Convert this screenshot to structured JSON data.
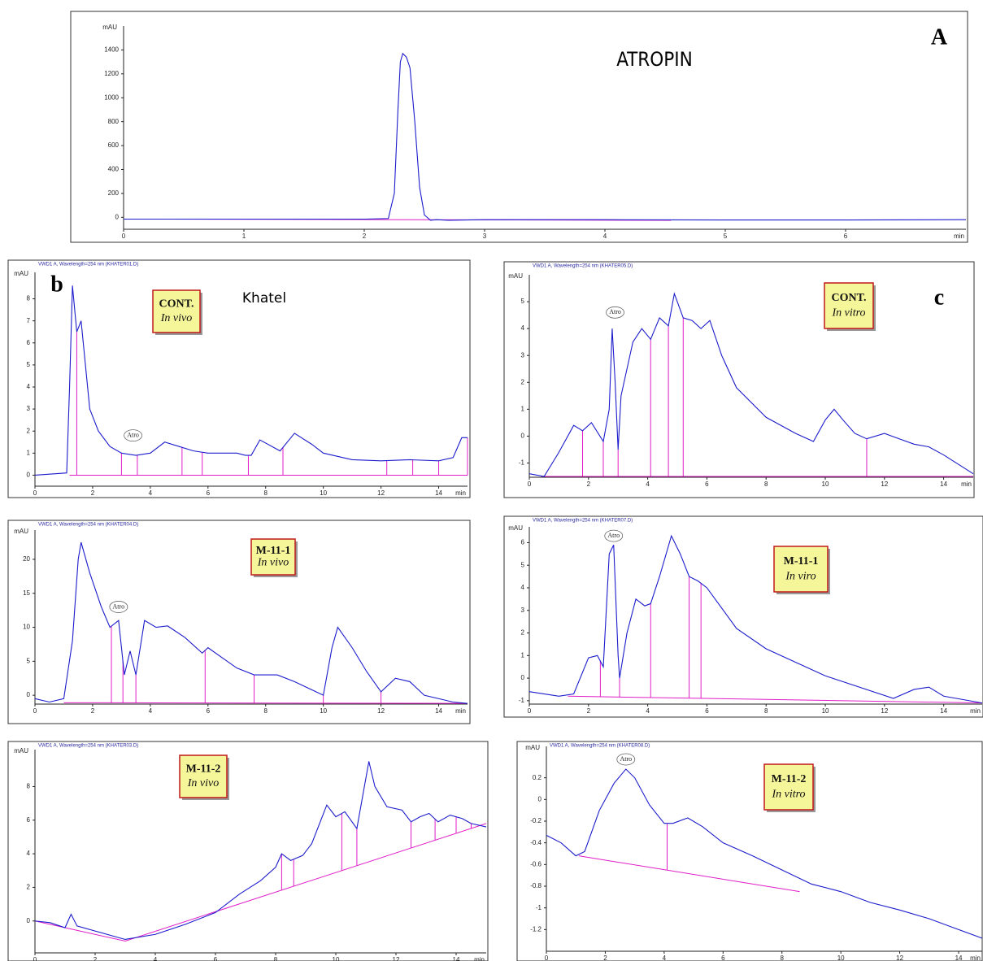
{
  "chart_data": [
    {
      "type": "line",
      "panel_label": "A",
      "title": "ATROPIN",
      "ylabel": "mAU",
      "xlabel": "min",
      "color": "#1c1ccc",
      "baseline_color": "#e01cc8",
      "xlim": [
        0,
        7
      ],
      "ylim": [
        -100,
        1600
      ],
      "xticks": [
        0,
        1,
        2,
        3,
        4,
        5,
        6
      ],
      "yticks": [
        0,
        200,
        400,
        600,
        800,
        1000,
        1200,
        1400
      ],
      "x": [
        0,
        0.5,
        1,
        1.5,
        2,
        2.2,
        2.25,
        2.28,
        2.3,
        2.32,
        2.35,
        2.38,
        2.42,
        2.46,
        2.5,
        2.55,
        2.6,
        2.7,
        3,
        4,
        5,
        6,
        7
      ],
      "values": [
        -15,
        -15,
        -15,
        -15,
        -15,
        -10,
        200,
        900,
        1300,
        1370,
        1340,
        1250,
        800,
        250,
        20,
        -25,
        -20,
        -25,
        -20,
        -20,
        -22,
        -22,
        -20
      ],
      "baseline": {
        "x": [
          0.3,
          4.55
        ],
        "values": [
          -15,
          -25
        ]
      }
    },
    {
      "type": "line",
      "panel_label": "b",
      "header": "VWD1 A, Wavelength=254 nm (KHATER01.D)",
      "note": "Khatel",
      "label_lines": [
        "CONT.",
        "In vivo"
      ],
      "ylabel": "mAU",
      "xlabel": "min",
      "color": "#1c1ccc",
      "baseline_color": "#e01cc8",
      "xlim": [
        0,
        15
      ],
      "ylim": [
        -0.5,
        9.2
      ],
      "xticks": [
        0,
        2,
        4,
        6,
        8,
        10,
        12,
        14
      ],
      "yticks": [
        0,
        1,
        2,
        3,
        4,
        5,
        6,
        7,
        8
      ],
      "x": [
        0,
        1.1,
        1.2,
        1.3,
        1.45,
        1.6,
        1.9,
        2.2,
        2.6,
        3,
        3.5,
        4,
        4.5,
        5,
        5.5,
        6,
        7,
        7.3,
        7.5,
        7.8,
        8.5,
        9,
        9.6,
        10,
        11,
        12,
        13,
        14,
        14.5,
        14.8,
        15
      ],
      "values": [
        0,
        0.1,
        4,
        8.6,
        6.5,
        7,
        3,
        2,
        1.3,
        1,
        0.9,
        1,
        1.5,
        1.3,
        1.1,
        1,
        1,
        0.9,
        0.9,
        1.6,
        1.1,
        1.9,
        1.4,
        1,
        0.7,
        0.65,
        0.7,
        0.65,
        0.8,
        1.7,
        1.7
      ],
      "baseline": {
        "x": [
          1.2,
          15
        ],
        "values": [
          0,
          0
        ]
      },
      "drop_lines": [
        1.45,
        3.0,
        3.55,
        5.1,
        5.8,
        7.4,
        8.6,
        12.2,
        13.1,
        14,
        15
      ],
      "annotations": [
        {
          "text": "Atro",
          "x": 3.4,
          "y": 1.8
        }
      ]
    },
    {
      "type": "line",
      "panel_label": "c",
      "header": "VWD1 A, Wavelength=254 nm (KHATER05.D)",
      "label_lines": [
        "CONT.",
        "In vitro"
      ],
      "ylabel": "mAU",
      "xlabel": "min",
      "color": "#1c1ccc",
      "baseline_color": "#e01cc8",
      "xlim": [
        0,
        15
      ],
      "ylim": [
        -1.53,
        6
      ],
      "xticks": [
        0,
        2,
        4,
        6,
        8,
        10,
        12,
        14
      ],
      "yticks": [
        -1,
        0,
        1,
        2,
        3,
        4,
        5
      ],
      "x": [
        0,
        0.5,
        1,
        1.5,
        1.8,
        2.1,
        2.5,
        2.7,
        2.8,
        2.9,
        3.0,
        3.1,
        3.5,
        3.8,
        4.1,
        4.4,
        4.7,
        4.9,
        5.2,
        5.5,
        5.8,
        6.1,
        6.5,
        7,
        8,
        9,
        9.6,
        10,
        10.3,
        10.6,
        11,
        11.4,
        12,
        12.5,
        13,
        13.5,
        14,
        15
      ],
      "values": [
        -1.4,
        -1.5,
        -0.6,
        0.4,
        0.2,
        0.5,
        -0.2,
        1,
        4,
        2,
        -0.5,
        1.5,
        3.5,
        4,
        3.6,
        4.4,
        4.1,
        5.3,
        4.4,
        4.3,
        4,
        4.3,
        3,
        1.8,
        0.7,
        0.1,
        -0.2,
        0.6,
        1,
        0.6,
        0.1,
        -0.1,
        0.1,
        -0.1,
        -0.3,
        -0.4,
        -0.7,
        -1.4
      ],
      "baseline": {
        "x": [
          0.4,
          15
        ],
        "values": [
          -1.5,
          -1.5
        ]
      },
      "drop_lines": [
        1.8,
        2.5,
        3.0,
        4.1,
        4.7,
        5.2,
        11.4
      ],
      "annotations": [
        {
          "text": "Atro",
          "x": 2.9,
          "y": 4.6
        }
      ]
    },
    {
      "type": "line",
      "header": "VWD1 A, Wavelength=254 nm (KHATER04.D)",
      "label_lines": [
        "M-11-1",
        "In vivo"
      ],
      "ylabel": "mAU",
      "xlabel": "min",
      "color": "#1c1ccc",
      "baseline_color": "#e01cc8",
      "xlim": [
        0,
        15
      ],
      "ylim": [
        -1.3,
        24.3
      ],
      "xticks": [
        0,
        2,
        4,
        6,
        8,
        10,
        12,
        14
      ],
      "yticks": [
        0,
        5,
        10,
        15,
        20
      ],
      "x": [
        0,
        0.5,
        1,
        1.3,
        1.5,
        1.6,
        1.9,
        2.3,
        2.6,
        2.9,
        3.1,
        3.3,
        3.5,
        3.8,
        4.2,
        4.6,
        5.2,
        5.8,
        6,
        6.5,
        7,
        7.6,
        8.4,
        9,
        10,
        10.3,
        10.5,
        11,
        11.5,
        12,
        12.5,
        13,
        13.5,
        14.5,
        15
      ],
      "values": [
        -0.5,
        -1,
        -0.5,
        8,
        20,
        22.5,
        18,
        13,
        10,
        11,
        3,
        6.5,
        3,
        11,
        10,
        10.2,
        8.5,
        6.2,
        7,
        5.5,
        4,
        3,
        3,
        2,
        0,
        7,
        10,
        7,
        3.5,
        0.5,
        2.5,
        2,
        0,
        -1,
        -1.2
      ],
      "baseline": {
        "x": [
          1,
          15
        ],
        "values": [
          -1.1,
          -1.2
        ]
      },
      "drop_lines": [
        2.65,
        3.05,
        3.5,
        5.9,
        7.6,
        10,
        12
      ],
      "annotations": [
        {
          "text": "Atro",
          "x": 2.9,
          "y": 13
        }
      ]
    },
    {
      "type": "line",
      "header": "VWD1 A, Wavelength=254 nm (KHATER07.D)",
      "label_lines": [
        "M-11-1",
        "In viro"
      ],
      "ylabel": "mAU",
      "xlabel": "min",
      "color": "#1c1ccc",
      "baseline_color": "#e01cc8",
      "xlim": [
        0,
        15.3
      ],
      "ylim": [
        -1.15,
        6.7
      ],
      "xticks": [
        0,
        2,
        4,
        6,
        8,
        10,
        12,
        14
      ],
      "yticks": [
        -1,
        0,
        1,
        2,
        3,
        4,
        5,
        6
      ],
      "x": [
        0,
        1,
        1.5,
        2,
        2.3,
        2.5,
        2.7,
        2.85,
        3,
        3.05,
        3.3,
        3.6,
        3.9,
        4.1,
        4.4,
        4.8,
        5.1,
        5.4,
        5.7,
        6,
        7,
        8,
        10,
        12.3,
        13,
        13.5,
        14,
        15.3
      ],
      "values": [
        -0.6,
        -0.8,
        -0.7,
        0.9,
        1,
        0.5,
        5.5,
        5.9,
        1,
        0,
        2,
        3.5,
        3.2,
        3.3,
        4.5,
        6.3,
        5.5,
        4.5,
        4.3,
        4,
        2.2,
        1.3,
        0.1,
        -0.9,
        -0.5,
        -0.4,
        -0.8,
        -1.1
      ],
      "baseline": {
        "x": [
          1.3,
          15.3
        ],
        "values": [
          -0.8,
          -1.1
        ]
      },
      "drop_lines": [
        2.4,
        3.05,
        4.1,
        5.4,
        5.8
      ],
      "annotations": [
        {
          "text": "Atro",
          "x": 2.85,
          "y": 6.3
        }
      ]
    },
    {
      "type": "line",
      "header": "VWD1 A, Wavelength=254 nm (KHATER03.D)",
      "label_lines": [
        "M-11-2",
        "In vivo"
      ],
      "ylabel": "mAU",
      "xlabel": "min",
      "color": "#1c1ccc",
      "baseline_color": "#e01cc8",
      "xlim": [
        0,
        15
      ],
      "ylim": [
        -1.9,
        10.2
      ],
      "xticks": [
        0,
        2,
        4,
        6,
        8,
        10,
        12,
        14
      ],
      "yticks": [
        0,
        2,
        4,
        6,
        8
      ],
      "x": [
        0,
        0.5,
        1,
        1.2,
        1.4,
        2,
        3,
        4,
        5,
        6,
        6.8,
        7.5,
        8,
        8.2,
        8.5,
        8.9,
        9.2,
        9.7,
        10,
        10.3,
        10.7,
        11.1,
        11.3,
        11.7,
        12.2,
        12.5,
        12.8,
        13.1,
        13.4,
        13.8,
        14.2,
        14.5,
        15
      ],
      "values": [
        0,
        -0.1,
        -0.4,
        0.4,
        -0.3,
        -0.6,
        -1.1,
        -0.8,
        -0.2,
        0.5,
        1.6,
        2.4,
        3.2,
        4,
        3.6,
        3.9,
        4.6,
        6.9,
        6.2,
        6.5,
        5.5,
        9.5,
        8,
        6.8,
        6.6,
        5.9,
        6.2,
        6.4,
        5.9,
        6.3,
        6.1,
        5.8,
        5.6
      ],
      "baseline": {
        "x": [
          0,
          3,
          15
        ],
        "values": [
          0,
          -1.2,
          5.8
        ]
      },
      "drop_lines": [
        8.2,
        8.6,
        10.2,
        10.7,
        12.5,
        13.3,
        14.0,
        14.5
      ]
    },
    {
      "type": "line",
      "header": "VWD1 A, Wavelength=254 nm (KHATER08.D)",
      "label_lines": [
        "M-11-2",
        "In vitro"
      ],
      "ylabel": "mAU",
      "xlabel": "min",
      "color": "#1c1ccc",
      "baseline_color": "#e01cc8",
      "xlim": [
        0,
        14.8
      ],
      "ylim": [
        -1.4,
        0.49
      ],
      "xticks": [
        0,
        2,
        4,
        6,
        8,
        10,
        12,
        14
      ],
      "yticks": [
        -1.2,
        -1,
        -0.8,
        -0.6,
        -0.4,
        -0.2,
        0,
        0.2
      ],
      "x": [
        0,
        0.5,
        1,
        1.3,
        1.8,
        2.3,
        2.7,
        3,
        3.5,
        4,
        4.3,
        4.8,
        5.3,
        6,
        7,
        8,
        9,
        10,
        11,
        12,
        13,
        14,
        14.8
      ],
      "values": [
        -0.33,
        -0.4,
        -0.52,
        -0.48,
        -0.1,
        0.15,
        0.28,
        0.2,
        -0.05,
        -0.22,
        -0.22,
        -0.17,
        -0.25,
        -0.4,
        -0.52,
        -0.65,
        -0.78,
        -0.85,
        -0.95,
        -1.02,
        -1.1,
        -1.2,
        -1.28
      ],
      "baseline": {
        "x": [
          1.1,
          8.6
        ],
        "values": [
          -0.52,
          -0.85
        ]
      },
      "drop_lines": [
        4.1
      ],
      "annotations": [
        {
          "text": "Atro",
          "x": 2.7,
          "y": 0.37
        }
      ]
    }
  ]
}
